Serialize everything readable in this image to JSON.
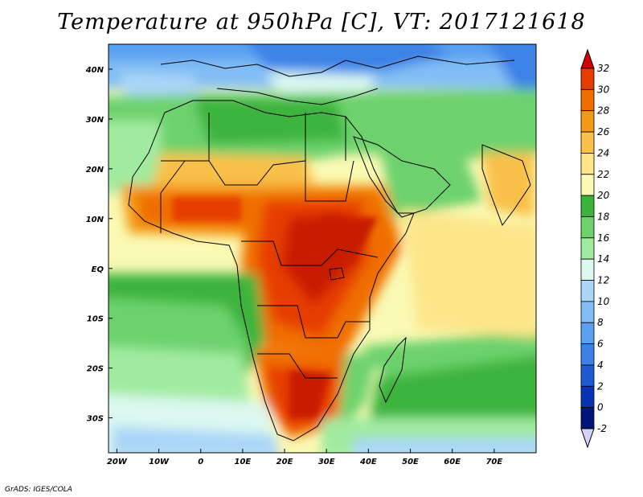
{
  "title": "Temperature at 950hPa [C], VT: 2017121618",
  "credit": "GrADS: IGES/COLA",
  "map": {
    "lat_labels": [
      {
        "text": "40N",
        "lat": 40
      },
      {
        "text": "30N",
        "lat": 30
      },
      {
        "text": "20N",
        "lat": 20
      },
      {
        "text": "10N",
        "lat": 10
      },
      {
        "text": "EQ",
        "lat": 0
      },
      {
        "text": "10S",
        "lat": -10
      },
      {
        "text": "20S",
        "lat": -20
      },
      {
        "text": "30S",
        "lat": -30
      }
    ],
    "lon_labels": [
      {
        "text": "20W",
        "lon": -20
      },
      {
        "text": "10W",
        "lon": -10
      },
      {
        "text": "0",
        "lon": 0
      },
      {
        "text": "10E",
        "lon": 10
      },
      {
        "text": "20E",
        "lon": 20
      },
      {
        "text": "30E",
        "lon": 30
      },
      {
        "text": "40E",
        "lon": 40
      },
      {
        "text": "50E",
        "lon": 50
      },
      {
        "text": "60E",
        "lon": 60
      },
      {
        "text": "70E",
        "lon": 70
      }
    ],
    "extent": {
      "lon_min": -22,
      "lon_max": 80,
      "lat_min": -37,
      "lat_max": 45
    }
  },
  "colorbar": {
    "levels": [
      {
        "label": "32",
        "color": "#c81e00"
      },
      {
        "label": "30",
        "color": "#e63c00"
      },
      {
        "label": "28",
        "color": "#f06e00"
      },
      {
        "label": "26",
        "color": "#f59a14"
      },
      {
        "label": "24",
        "color": "#f9c04a"
      },
      {
        "label": "22",
        "color": "#fde68a"
      },
      {
        "label": "20",
        "color": "#fafab4"
      },
      {
        "label": "18",
        "color": "#3cb43c"
      },
      {
        "label": "16",
        "color": "#6dd26d"
      },
      {
        "label": "14",
        "color": "#a0eba0"
      },
      {
        "label": "12",
        "color": "#dcf8f0"
      },
      {
        "label": "10",
        "color": "#aad6f8"
      },
      {
        "label": "8",
        "color": "#82bef5"
      },
      {
        "label": "6",
        "color": "#5aa0f0"
      },
      {
        "label": "4",
        "color": "#3c82e6"
      },
      {
        "label": "2",
        "color": "#1e5ad2"
      },
      {
        "label": "0",
        "color": "#0a32b4"
      },
      {
        "label": "-2",
        "color": "#00147a"
      }
    ],
    "top_arrow_color": "#d20000",
    "bottom_arrow_color": "#d2d2f8"
  }
}
